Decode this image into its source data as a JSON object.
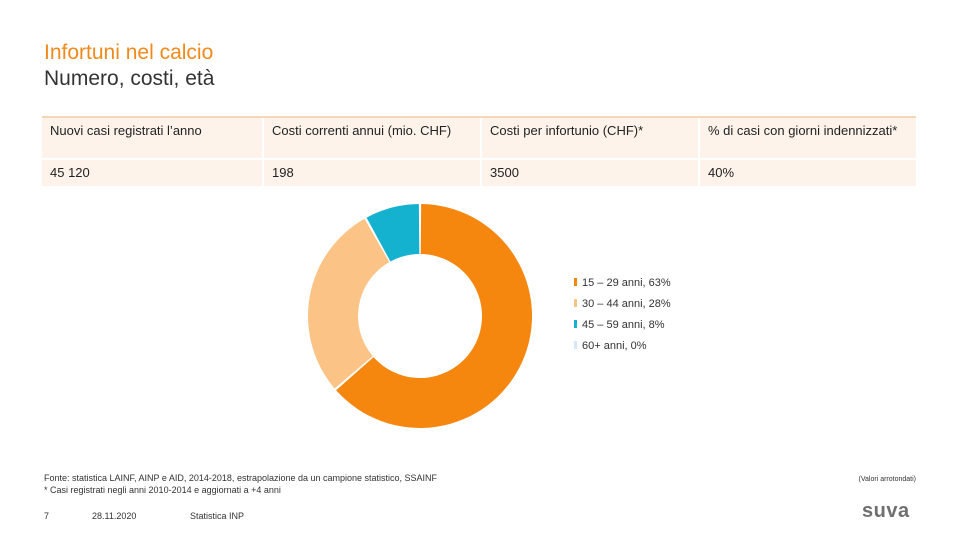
{
  "header": {
    "title": "Infortuni nel calcio",
    "subtitle": "Numero, costi, età"
  },
  "table": {
    "headers": [
      "Nuovi casi registrati l’anno",
      "Costi correnti annui (mio. CHF)",
      "Costi per infortunio (CHF)*",
      "% di casi con giorni indennizzati*"
    ],
    "values": [
      "45 120",
      "198",
      "3500",
      "40%"
    ]
  },
  "chart_data": {
    "type": "pie",
    "variant": "donut",
    "categories": [
      "15 – 29 anni, 63%",
      "30 – 44 anni, 28%",
      "45 – 59 anni, 8%",
      "60+ anni, 0%"
    ],
    "values": [
      63,
      28,
      8,
      0
    ],
    "colors": [
      "#f5870f",
      "#fcc386",
      "#14b2cf",
      "#d6e8f2"
    ],
    "legend_position": "right"
  },
  "footer": {
    "source": "Fonte: statistica LAINF, AINP e AID, 2014-2018, estrapolazione da un campione statistico, SSAINF",
    "note": "* Casi registrati negli anni 2010-2014 e aggiornati a +4 anni",
    "rounded": "(Valori arrotondati)",
    "page": "7",
    "date": "28.11.2020",
    "label": "Statistica INP",
    "logo": "suva"
  }
}
